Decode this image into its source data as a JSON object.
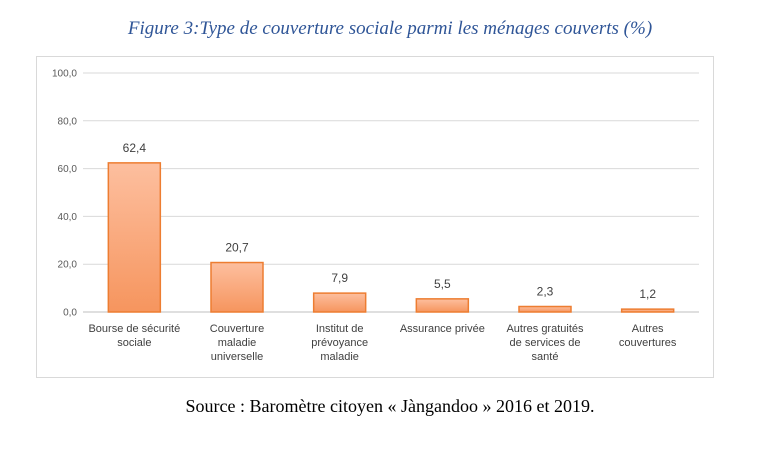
{
  "figure_title": "Figure 3:Type de couverture sociale parmi les ménages couverts (%)",
  "source": "Source : Baromètre citoyen « Jàngandoo » 2016 et 2019.",
  "colors": {
    "bar_fill_top": "#FDBF9F",
    "bar_fill_bottom": "#F6955E",
    "bar_stroke": "#ED7D31",
    "title": "#2F5597",
    "grid": "#d9d9d9"
  },
  "chart_data": {
    "type": "bar",
    "title": "",
    "xlabel": "",
    "ylabel": "",
    "ylim": [
      0,
      100
    ],
    "yticks": [
      "0,0",
      "20,0",
      "40,0",
      "60,0",
      "80,0",
      "100,0"
    ],
    "grid": true,
    "categories": [
      [
        "Bourse de sécurité",
        "sociale"
      ],
      [
        "Couverture",
        "maladie",
        "universelle"
      ],
      [
        "Institut de",
        "prévoyance",
        "maladie"
      ],
      [
        "Assurance privée"
      ],
      [
        "Autres gratuités",
        "de services de",
        "santé"
      ],
      [
        "Autres",
        "couvertures"
      ]
    ],
    "values": [
      62.4,
      20.7,
      7.9,
      5.5,
      2.3,
      1.2
    ],
    "value_labels": [
      "62,4",
      "20,7",
      "7,9",
      "5,5",
      "2,3",
      "1,2"
    ]
  }
}
